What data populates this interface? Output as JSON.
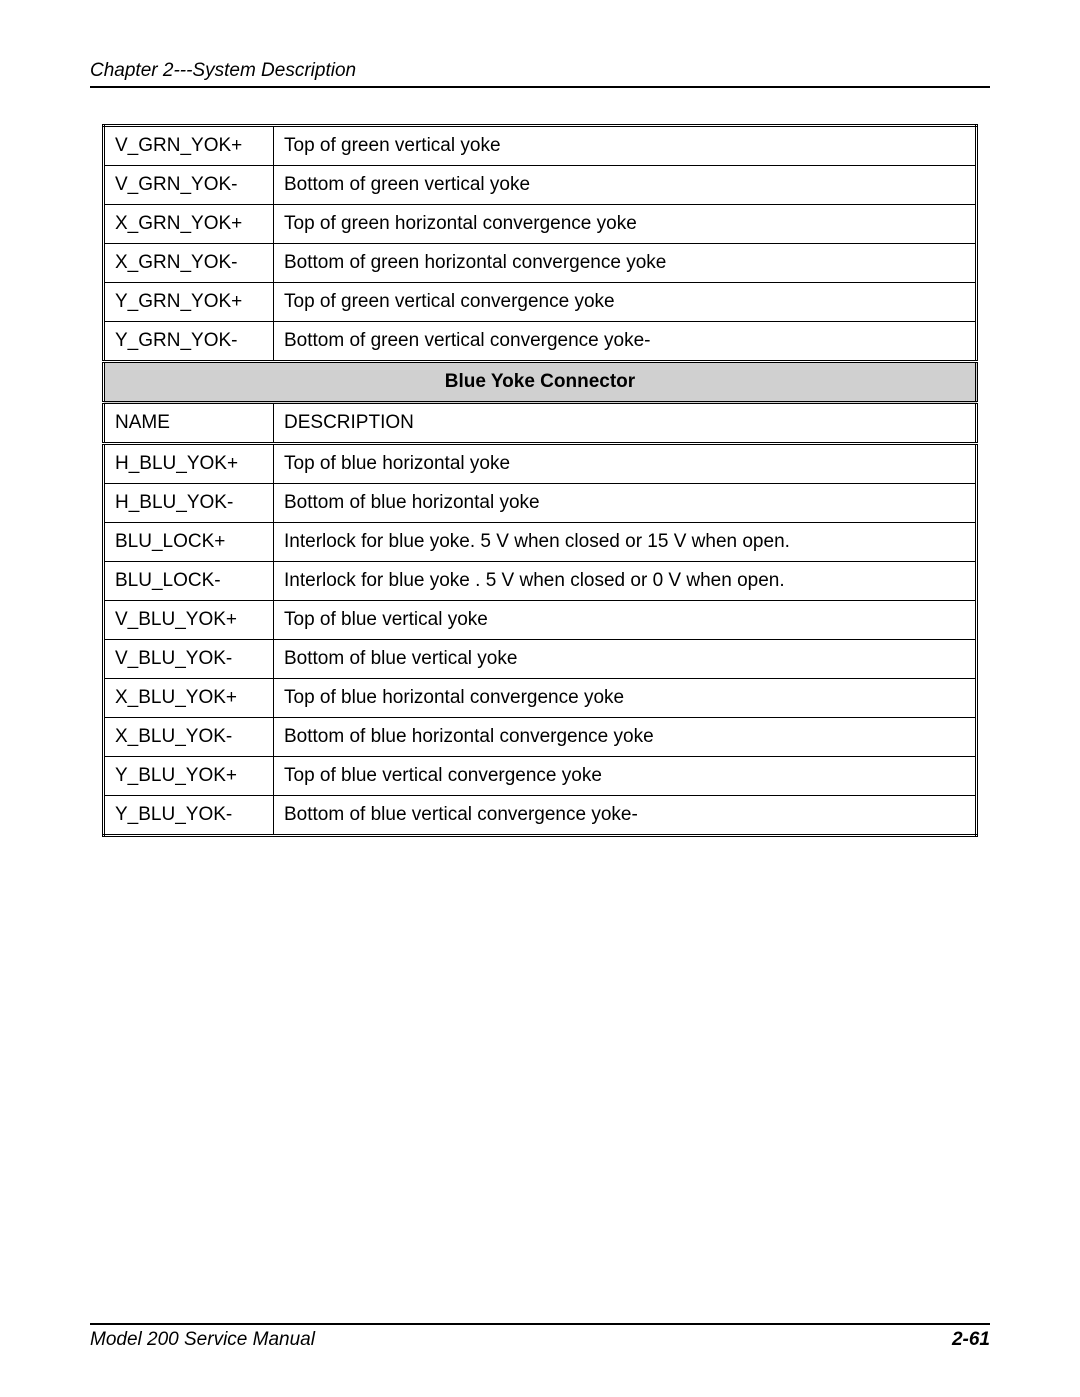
{
  "header": {
    "chapter_text": "Chapter 2---System Description"
  },
  "footer": {
    "manual_text": "Model 200 Service Manual",
    "page_number": "2-61"
  },
  "table": {
    "colors": {
      "section_bg": "#d0d0d0",
      "border": "#000000",
      "text": "#000000",
      "background": "#ffffff"
    },
    "green_rows": [
      {
        "name": "V_GRN_YOK+",
        "desc": "Top of green vertical yoke"
      },
      {
        "name": "V_GRN_YOK-",
        "desc": "Bottom of green vertical yoke"
      },
      {
        "name": "X_GRN_YOK+",
        "desc": "Top of  green horizontal convergence yoke"
      },
      {
        "name": "X_GRN_YOK-",
        "desc": "Bottom of green horizontal convergence yoke"
      },
      {
        "name": "Y_GRN_YOK+",
        "desc": "Top of green vertical convergence yoke"
      },
      {
        "name": "Y_GRN_YOK-",
        "desc": "Bottom of green vertical convergence yoke-"
      }
    ],
    "section_title": "Blue Yoke Connector",
    "subheader": {
      "name": "NAME",
      "desc": "DESCRIPTION"
    },
    "blue_rows": [
      {
        "name": "H_BLU_YOK+",
        "desc": "Top of blue horizontal yoke"
      },
      {
        "name": "H_BLU_YOK-",
        "desc": "Bottom of blue horizontal yoke"
      },
      {
        "name": "BLU_LOCK+",
        "desc": "Interlock for blue yoke. 5 V when closed or 15 V when open."
      },
      {
        "name": "BLU_LOCK-",
        "desc": "Interlock for blue yoke . 5 V when closed or 0 V when open."
      },
      {
        "name": "V_BLU_YOK+",
        "desc": "Top of blue vertical yoke"
      },
      {
        "name": "V_BLU_YOK-",
        "desc": "Bottom of blue vertical yoke"
      },
      {
        "name": "X_BLU_YOK+",
        "desc": "Top of  blue horizontal convergence yoke"
      },
      {
        "name": "X_BLU_YOK-",
        "desc": "Bottom of blue horizontal convergence yoke"
      },
      {
        "name": "Y_BLU_YOK+",
        "desc": "Top of blue vertical convergence yoke"
      },
      {
        "name": "Y_BLU_YOK-",
        "desc": "Bottom of blue vertical convergence yoke-"
      }
    ]
  }
}
